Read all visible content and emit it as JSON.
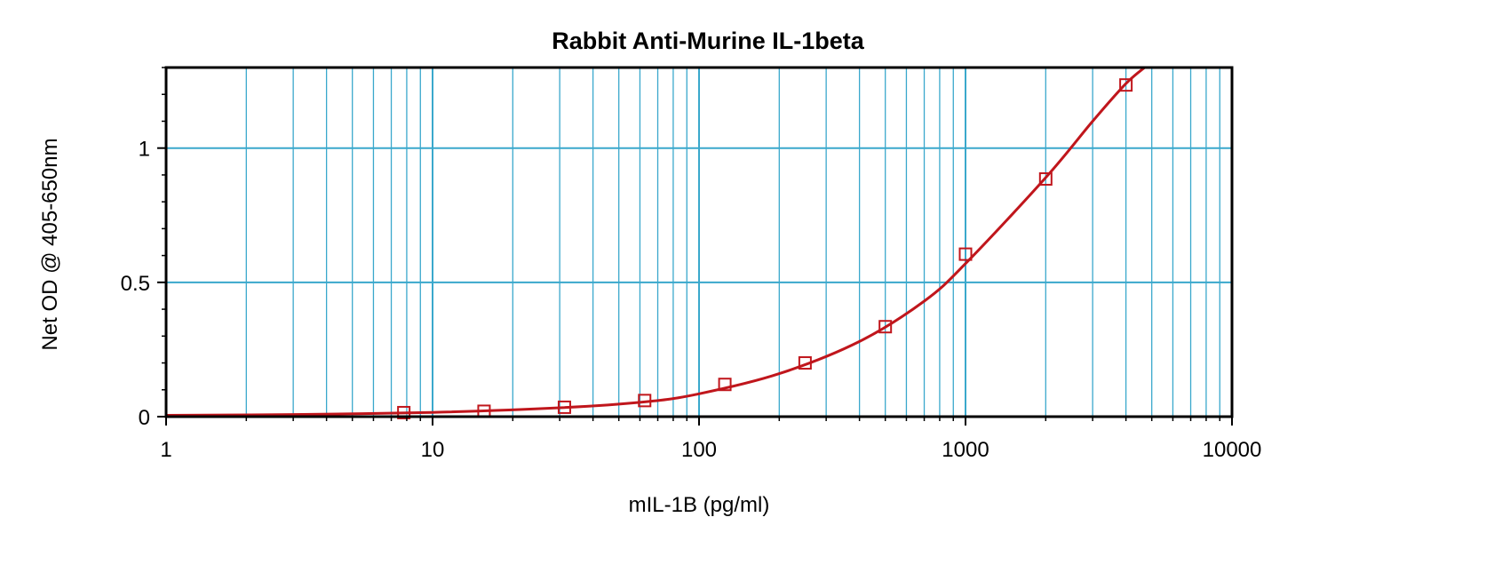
{
  "chart_data": {
    "type": "scatter",
    "title": "Rabbit Anti-Murine IL-1beta",
    "xlabel": "mIL-1B (pg/ml)",
    "ylabel": "Net OD @ 405-650nm",
    "x_scale": "log",
    "xlim": [
      1,
      10000
    ],
    "ylim": [
      0,
      1.3
    ],
    "x_ticks": [
      1,
      10,
      100,
      1000,
      10000
    ],
    "x_tick_labels": [
      "1",
      "10",
      "100",
      "1000",
      "10000"
    ],
    "y_ticks": [
      0,
      0.5,
      1
    ],
    "y_tick_labels": [
      "0",
      "0.5",
      "1"
    ],
    "grid": true,
    "legend": "none",
    "series": [
      {
        "marker": "open-square",
        "points": [
          {
            "x": 7.8,
            "y": 0.015
          },
          {
            "x": 15.6,
            "y": 0.02
          },
          {
            "x": 31.25,
            "y": 0.035
          },
          {
            "x": 62.5,
            "y": 0.06
          },
          {
            "x": 125,
            "y": 0.12
          },
          {
            "x": 250,
            "y": 0.2
          },
          {
            "x": 500,
            "y": 0.335
          },
          {
            "x": 1000,
            "y": 0.605
          },
          {
            "x": 2000,
            "y": 0.885
          },
          {
            "x": 4000,
            "y": 1.235
          }
        ]
      }
    ],
    "fit_curve": {
      "points": [
        {
          "x": 1,
          "y": 0.005
        },
        {
          "x": 3,
          "y": 0.008
        },
        {
          "x": 10,
          "y": 0.016
        },
        {
          "x": 30,
          "y": 0.033
        },
        {
          "x": 62.5,
          "y": 0.055
        },
        {
          "x": 100,
          "y": 0.085
        },
        {
          "x": 200,
          "y": 0.16
        },
        {
          "x": 400,
          "y": 0.28
        },
        {
          "x": 700,
          "y": 0.43
        },
        {
          "x": 1000,
          "y": 0.57
        },
        {
          "x": 2000,
          "y": 0.89
        },
        {
          "x": 3000,
          "y": 1.1
        },
        {
          "x": 4000,
          "y": 1.24
        },
        {
          "x": 4700,
          "y": 1.3
        }
      ]
    },
    "colors": {
      "grid": "#3aa8cc",
      "series": "#c0161c",
      "frame": "#000000",
      "background": "#ffffff"
    }
  }
}
